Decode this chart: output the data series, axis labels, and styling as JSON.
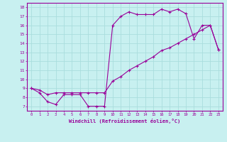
{
  "xlabel": "Windchill (Refroidissement éolien,°C)",
  "bg_color": "#c8f0f0",
  "line_color": "#990099",
  "grid_color": "#aadddd",
  "xlim": [
    -0.5,
    23.5
  ],
  "ylim": [
    6.5,
    18.5
  ],
  "xticks": [
    0,
    1,
    2,
    3,
    4,
    5,
    6,
    7,
    8,
    9,
    10,
    11,
    12,
    13,
    14,
    15,
    16,
    17,
    18,
    19,
    20,
    21,
    22,
    23
  ],
  "yticks": [
    7,
    8,
    9,
    10,
    11,
    12,
    13,
    14,
    15,
    16,
    17,
    18
  ],
  "line1_x": [
    0,
    1,
    2,
    3,
    4,
    5,
    6,
    7,
    8,
    9,
    10,
    11,
    12,
    13,
    14,
    15,
    16,
    17,
    18,
    19,
    20,
    21,
    22,
    23
  ],
  "line1_y": [
    9.0,
    8.5,
    7.5,
    7.2,
    8.3,
    8.3,
    8.3,
    7.0,
    7.0,
    7.0,
    16.0,
    17.0,
    17.5,
    17.2,
    17.2,
    17.2,
    17.8,
    17.5,
    17.8,
    17.3,
    14.5,
    16.0,
    16.0,
    13.3
  ],
  "line2_x": [
    0,
    1,
    2,
    3,
    4,
    5,
    6,
    7,
    8,
    9,
    10,
    11,
    12,
    13,
    14,
    15,
    16,
    17,
    18,
    19,
    20,
    21,
    22,
    23
  ],
  "line2_y": [
    9.0,
    8.8,
    8.3,
    8.5,
    8.5,
    8.5,
    8.5,
    8.5,
    8.5,
    8.5,
    9.8,
    10.3,
    11.0,
    11.5,
    12.0,
    12.5,
    13.2,
    13.5,
    14.0,
    14.5,
    15.0,
    15.5,
    16.0,
    13.3
  ],
  "marker": "+",
  "markersize": 3,
  "linewidth": 0.8
}
